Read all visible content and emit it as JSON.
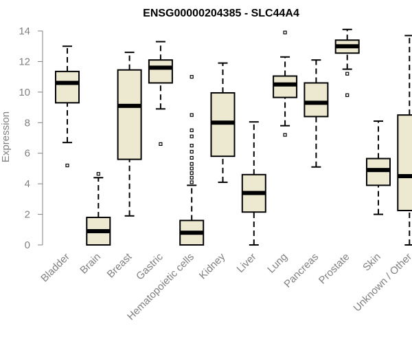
{
  "chart_data": {
    "type": "boxplot",
    "title": "ENSG00000204385 - SLC44A4",
    "xlabel": "",
    "ylabel": "Expression",
    "ylim": [
      0,
      14
    ],
    "yticks": [
      0,
      2,
      4,
      6,
      8,
      10,
      12,
      14
    ],
    "grid": false,
    "box_color": "#ede8d0",
    "categories": [
      "Bladder",
      "Brain",
      "Breast",
      "Gastric",
      "Hematopoietic cells",
      "Kidney",
      "Liver",
      "Lung",
      "Pancreas",
      "Prostate",
      "Skin",
      "Unknown / Other"
    ],
    "boxes": [
      {
        "whisker_low": 6.7,
        "q1": 9.3,
        "median": 10.6,
        "q3": 11.35,
        "whisker_high": 13.0,
        "outliers": [
          5.2
        ]
      },
      {
        "whisker_low": 0.0,
        "q1": 0.0,
        "median": 0.9,
        "q3": 1.8,
        "whisker_high": 4.4,
        "outliers": [
          4.65
        ]
      },
      {
        "whisker_low": 1.9,
        "q1": 5.6,
        "median": 9.1,
        "q3": 11.45,
        "whisker_high": 12.6,
        "outliers": []
      },
      {
        "whisker_low": 8.9,
        "q1": 10.6,
        "median": 11.6,
        "q3": 12.1,
        "whisker_high": 13.3,
        "outliers": [
          6.6
        ]
      },
      {
        "whisker_low": 0.0,
        "q1": 0.0,
        "median": 0.8,
        "q3": 1.6,
        "whisker_high": 3.9,
        "outliers": [
          4.1,
          4.4,
          4.7,
          5.0,
          5.3,
          5.7,
          6.1,
          6.5,
          7.1,
          7.5,
          8.5,
          11.0
        ]
      },
      {
        "whisker_low": 4.1,
        "q1": 5.8,
        "median": 8.0,
        "q3": 9.95,
        "whisker_high": 11.9,
        "outliers": []
      },
      {
        "whisker_low": 0.0,
        "q1": 2.15,
        "median": 3.4,
        "q3": 4.6,
        "whisker_high": 8.05,
        "outliers": []
      },
      {
        "whisker_low": 7.8,
        "q1": 9.65,
        "median": 10.5,
        "q3": 11.05,
        "whisker_high": 12.3,
        "outliers": [
          7.2,
          13.9
        ]
      },
      {
        "whisker_low": 5.1,
        "q1": 8.4,
        "median": 9.3,
        "q3": 10.6,
        "whisker_high": 12.1,
        "outliers": []
      },
      {
        "whisker_low": 11.5,
        "q1": 12.55,
        "median": 13.0,
        "q3": 13.4,
        "whisker_high": 14.1,
        "outliers": [
          9.8,
          11.2
        ]
      },
      {
        "whisker_low": 2.0,
        "q1": 3.9,
        "median": 4.9,
        "q3": 5.65,
        "whisker_high": 8.1,
        "outliers": []
      },
      {
        "whisker_low": 0.0,
        "q1": 2.25,
        "median": 4.5,
        "q3": 8.5,
        "whisker_high": 13.7,
        "outliers": []
      }
    ]
  }
}
